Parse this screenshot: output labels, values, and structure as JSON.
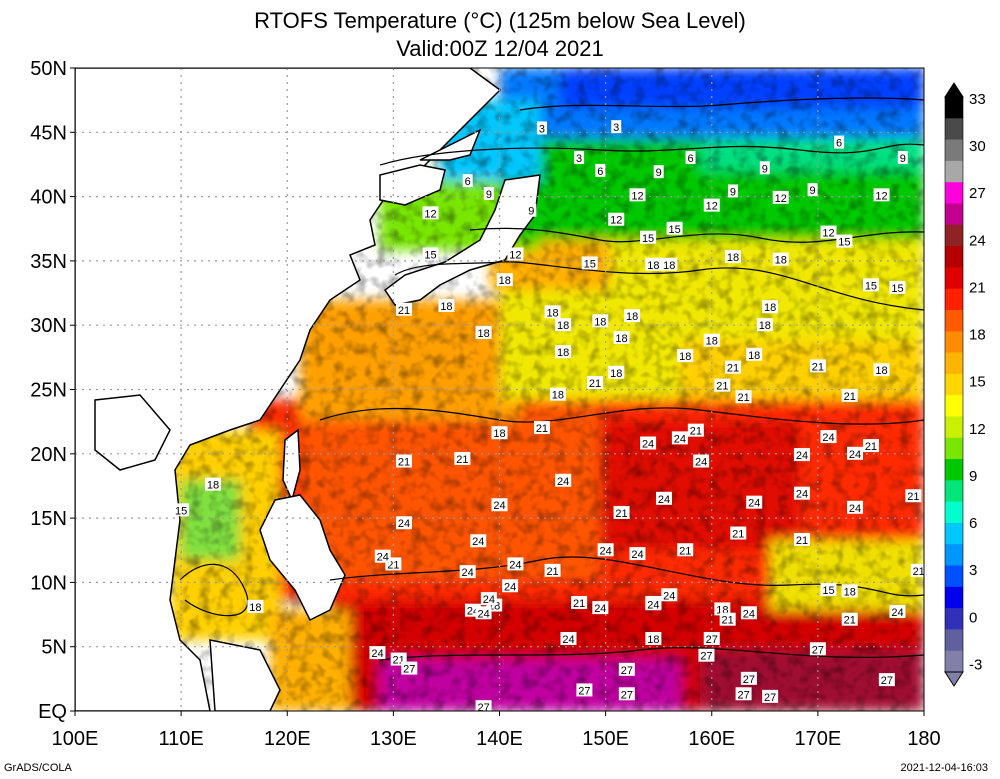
{
  "title_line1": "RTOFS Temperature (°C) (125m below Sea Level)",
  "title_line2": "Valid:00Z 12/04 2021",
  "footer_left": "GrADS/COLA",
  "footer_right": "2021-12-04-16:03",
  "map": {
    "lon_range": [
      100,
      180
    ],
    "lat_range": [
      0,
      50
    ],
    "lon_ticks": [
      "100E",
      "110E",
      "120E",
      "130E",
      "140E",
      "150E",
      "160E",
      "170E",
      "180"
    ],
    "lat_ticks": [
      "50N",
      "45N",
      "40N",
      "35N",
      "30N",
      "25N",
      "20N",
      "15N",
      "10N",
      "5N",
      "EQ"
    ],
    "grid": "dotted"
  },
  "colorbar": {
    "labels": [
      "33",
      "30",
      "27",
      "24",
      "21",
      "18",
      "15",
      "12",
      "9",
      "6",
      "3",
      "0",
      "-3"
    ],
    "colors": [
      "#000000",
      "#4a4a4a",
      "#7a7a7a",
      "#a8a8a8",
      "#ff00dd",
      "#c4008e",
      "#8f2323",
      "#b40000",
      "#e00000",
      "#ff2000",
      "#ff5a00",
      "#ff8c00",
      "#ffb400",
      "#ffd700",
      "#ffff00",
      "#c8f000",
      "#78e600",
      "#00c800",
      "#00e678",
      "#00ffcc",
      "#00c8ff",
      "#0096ff",
      "#0050ff",
      "#0000ee",
      "#3030b8",
      "#6060a0",
      "#8080a8"
    ]
  },
  "contour_labels": [
    {
      "t": "3",
      "lon": 144,
      "lat": 45.3
    },
    {
      "t": "3",
      "lon": 151,
      "lat": 45.4
    },
    {
      "t": "3",
      "lon": 147.5,
      "lat": 43
    },
    {
      "t": "6",
      "lon": 137,
      "lat": 41.2
    },
    {
      "t": "6",
      "lon": 149.5,
      "lat": 42
    },
    {
      "t": "6",
      "lon": 158,
      "lat": 43
    },
    {
      "t": "6",
      "lon": 172,
      "lat": 44.2
    },
    {
      "t": "9",
      "lon": 139,
      "lat": 40.2
    },
    {
      "t": "9",
      "lon": 143,
      "lat": 38.9
    },
    {
      "t": "9",
      "lon": 155,
      "lat": 41.9
    },
    {
      "t": "9",
      "lon": 165,
      "lat": 42.2
    },
    {
      "t": "9",
      "lon": 162,
      "lat": 40.4
    },
    {
      "t": "9",
      "lon": 169.5,
      "lat": 40.5
    },
    {
      "t": "9",
      "lon": 178,
      "lat": 43
    },
    {
      "t": "12",
      "lon": 133.5,
      "lat": 38.7
    },
    {
      "t": "12",
      "lon": 153,
      "lat": 40.1
    },
    {
      "t": "12",
      "lon": 151,
      "lat": 38.2
    },
    {
      "t": "12",
      "lon": 160,
      "lat": 39.3
    },
    {
      "t": "12",
      "lon": 166.5,
      "lat": 39.9
    },
    {
      "t": "12",
      "lon": 176,
      "lat": 40.1
    },
    {
      "t": "12",
      "lon": 141.5,
      "lat": 35.5
    },
    {
      "t": "12",
      "lon": 171,
      "lat": 37.2
    },
    {
      "t": "15",
      "lon": 133.5,
      "lat": 35.5
    },
    {
      "t": "15",
      "lon": 154,
      "lat": 36.8
    },
    {
      "t": "15",
      "lon": 156.5,
      "lat": 37.5
    },
    {
      "t": "15",
      "lon": 148.5,
      "lat": 34.8
    },
    {
      "t": "15",
      "lon": 172.5,
      "lat": 36.5
    },
    {
      "t": "15",
      "lon": 175,
      "lat": 33.1
    },
    {
      "t": "15",
      "lon": 177.5,
      "lat": 32.9
    },
    {
      "t": "15",
      "lon": 110,
      "lat": 15.6
    },
    {
      "t": "15",
      "lon": 171,
      "lat": 9.4
    },
    {
      "t": "18",
      "lon": 140.5,
      "lat": 33.5
    },
    {
      "t": "18",
      "lon": 135,
      "lat": 31.5
    },
    {
      "t": "18",
      "lon": 138.5,
      "lat": 29.4
    },
    {
      "t": "18",
      "lon": 145,
      "lat": 31
    },
    {
      "t": "18",
      "lon": 146,
      "lat": 30
    },
    {
      "t": "18",
      "lon": 149.5,
      "lat": 30.3
    },
    {
      "t": "18",
      "lon": 152.5,
      "lat": 30.7
    },
    {
      "t": "18",
      "lon": 151.5,
      "lat": 29
    },
    {
      "t": "18",
      "lon": 146,
      "lat": 27.9
    },
    {
      "t": "18",
      "lon": 151,
      "lat": 26.3
    },
    {
      "t": "18",
      "lon": 145.5,
      "lat": 24.6
    },
    {
      "t": "18",
      "lon": 154.5,
      "lat": 34.7
    },
    {
      "t": "18",
      "lon": 156,
      "lat": 34.7
    },
    {
      "t": "18",
      "lon": 162,
      "lat": 35.3
    },
    {
      "t": "18",
      "lon": 166.5,
      "lat": 35.1
    },
    {
      "t": "18",
      "lon": 165.5,
      "lat": 31.4
    },
    {
      "t": "18",
      "lon": 165,
      "lat": 30
    },
    {
      "t": "18",
      "lon": 157.5,
      "lat": 27.6
    },
    {
      "t": "18",
      "lon": 160,
      "lat": 28.8
    },
    {
      "t": "18",
      "lon": 164,
      "lat": 27.7
    },
    {
      "t": "18",
      "lon": 176,
      "lat": 26.5
    },
    {
      "t": "18",
      "lon": 140,
      "lat": 21.6
    },
    {
      "t": "18",
      "lon": 113,
      "lat": 17.6
    },
    {
      "t": "18",
      "lon": 117,
      "lat": 8.1
    },
    {
      "t": "18",
      "lon": 139.5,
      "lat": 8.2
    },
    {
      "t": "18",
      "lon": 154.5,
      "lat": 5.6
    },
    {
      "t": "18",
      "lon": 161,
      "lat": 7.9
    },
    {
      "t": "18",
      "lon": 173,
      "lat": 9.3
    },
    {
      "t": "21",
      "lon": 131,
      "lat": 31.2
    },
    {
      "t": "21",
      "lon": 149,
      "lat": 25.5
    },
    {
      "t": "21",
      "lon": 161,
      "lat": 25.3
    },
    {
      "t": "21",
      "lon": 162,
      "lat": 26.7
    },
    {
      "t": "21",
      "lon": 163,
      "lat": 24.4
    },
    {
      "t": "21",
      "lon": 170,
      "lat": 26.8
    },
    {
      "t": "21",
      "lon": 173,
      "lat": 24.5
    },
    {
      "t": "21",
      "lon": 158.5,
      "lat": 21.8
    },
    {
      "t": "21",
      "lon": 131,
      "lat": 19.4
    },
    {
      "t": "21",
      "lon": 136.5,
      "lat": 19.6
    },
    {
      "t": "21",
      "lon": 144,
      "lat": 22
    },
    {
      "t": "21",
      "lon": 175,
      "lat": 20.6
    },
    {
      "t": "21",
      "lon": 179,
      "lat": 16.7
    },
    {
      "t": "21",
      "lon": 151.5,
      "lat": 15.4
    },
    {
      "t": "21",
      "lon": 157.5,
      "lat": 12.5
    },
    {
      "t": "21",
      "lon": 162.5,
      "lat": 13.8
    },
    {
      "t": "21",
      "lon": 168.5,
      "lat": 13.3
    },
    {
      "t": "21",
      "lon": 130,
      "lat": 11.4
    },
    {
      "t": "21",
      "lon": 145,
      "lat": 10.9
    },
    {
      "t": "21",
      "lon": 147.5,
      "lat": 8.4
    },
    {
      "t": "21",
      "lon": 154.5,
      "lat": 8.4
    },
    {
      "t": "21",
      "lon": 161.5,
      "lat": 7.1
    },
    {
      "t": "21",
      "lon": 173,
      "lat": 7.1
    },
    {
      "t": "21",
      "lon": 179.5,
      "lat": 10.9
    },
    {
      "t": "21",
      "lon": 130.5,
      "lat": 4
    },
    {
      "t": "24",
      "lon": 131,
      "lat": 14.6
    },
    {
      "t": "24",
      "lon": 140,
      "lat": 16
    },
    {
      "t": "24",
      "lon": 138,
      "lat": 13.2
    },
    {
      "t": "24",
      "lon": 129,
      "lat": 12
    },
    {
      "t": "24",
      "lon": 137,
      "lat": 10.8
    },
    {
      "t": "24",
      "lon": 141.5,
      "lat": 11.4
    },
    {
      "t": "24",
      "lon": 141,
      "lat": 9.7
    },
    {
      "t": "24",
      "lon": 139,
      "lat": 8.7
    },
    {
      "t": "24",
      "lon": 137.5,
      "lat": 7.8
    },
    {
      "t": "24",
      "lon": 138.5,
      "lat": 7.6
    },
    {
      "t": "24",
      "lon": 146.5,
      "lat": 5.6
    },
    {
      "t": "24",
      "lon": 149.5,
      "lat": 8
    },
    {
      "t": "24",
      "lon": 154.5,
      "lat": 8.3
    },
    {
      "t": "24",
      "lon": 156,
      "lat": 9
    },
    {
      "t": "24",
      "lon": 146,
      "lat": 17.9
    },
    {
      "t": "24",
      "lon": 150,
      "lat": 12.5
    },
    {
      "t": "24",
      "lon": 153,
      "lat": 12.2
    },
    {
      "t": "24",
      "lon": 154,
      "lat": 20.8
    },
    {
      "t": "24",
      "lon": 157,
      "lat": 21.2
    },
    {
      "t": "24",
      "lon": 159,
      "lat": 19.4
    },
    {
      "t": "24",
      "lon": 155.5,
      "lat": 16.5
    },
    {
      "t": "24",
      "lon": 164,
      "lat": 16.2
    },
    {
      "t": "24",
      "lon": 168.5,
      "lat": 19.9
    },
    {
      "t": "24",
      "lon": 171,
      "lat": 21.3
    },
    {
      "t": "24",
      "lon": 173.5,
      "lat": 20
    },
    {
      "t": "24",
      "lon": 168.5,
      "lat": 16.9
    },
    {
      "t": "24",
      "lon": 173.5,
      "lat": 15.8
    },
    {
      "t": "24",
      "lon": 163.5,
      "lat": 7.6
    },
    {
      "t": "24",
      "lon": 177.5,
      "lat": 7.7
    },
    {
      "t": "24",
      "lon": 128.5,
      "lat": 4.5
    },
    {
      "t": "27",
      "lon": 131.5,
      "lat": 3.3
    },
    {
      "t": "27",
      "lon": 152,
      "lat": 3.2
    },
    {
      "t": "27",
      "lon": 160,
      "lat": 5.6
    },
    {
      "t": "27",
      "lon": 159.5,
      "lat": 4.3
    },
    {
      "t": "27",
      "lon": 170,
      "lat": 4.8
    },
    {
      "t": "27",
      "lon": 163.5,
      "lat": 2.5
    },
    {
      "t": "27",
      "lon": 165.5,
      "lat": 1.1
    },
    {
      "t": "27",
      "lon": 176.5,
      "lat": 2.4
    },
    {
      "t": "27",
      "lon": 148,
      "lat": 1.6
    },
    {
      "t": "27",
      "lon": 152,
      "lat": 1.3
    },
    {
      "t": "27",
      "lon": 163,
      "lat": 1.3
    },
    {
      "t": "27",
      "lon": 138.5,
      "lat": 0.3
    }
  ]
}
